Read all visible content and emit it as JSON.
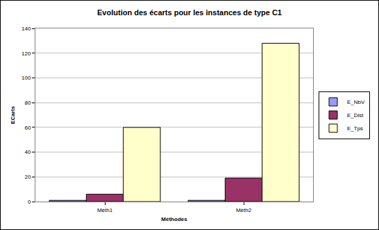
{
  "chart_data": {
    "type": "bar",
    "title": "Evolution des écarts pour les instances de type C1",
    "x_label": "Méthodes",
    "y_label": "ECarts",
    "categories": [
      "Méth1",
      "Méth2"
    ],
    "series": [
      {
        "name": "E_NbV",
        "color": "#9999ff",
        "values": [
          1,
          1
        ]
      },
      {
        "name": "E_Dist",
        "color": "#993366",
        "values": [
          6,
          19
        ]
      },
      {
        "name": "E_Tps",
        "color": "#ffffcc",
        "values": [
          60,
          128
        ]
      }
    ],
    "ylim": [
      0,
      140
    ],
    "yticks": [
      0,
      20,
      40,
      60,
      80,
      100,
      120,
      140
    ],
    "grid": true,
    "legend": "right"
  }
}
